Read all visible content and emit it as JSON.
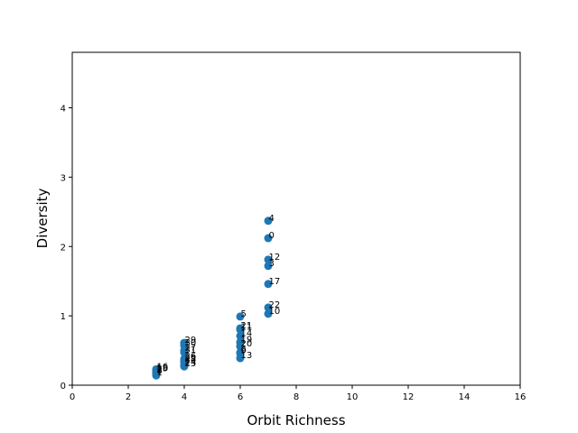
{
  "chart_data": {
    "type": "scatter",
    "title": "",
    "xlabel": "Orbit Richness",
    "ylabel": "Diversity",
    "xlim": [
      0,
      16
    ],
    "ylim": [
      0,
      4.8
    ],
    "xticks": [
      0,
      2,
      4,
      6,
      8,
      10,
      12,
      14,
      16
    ],
    "yticks": [
      0,
      1,
      2,
      3,
      4
    ],
    "grid": false,
    "legend": "none",
    "marker_color": "#1f77b4",
    "points": [
      {
        "x": 7,
        "y": 2.37,
        "label": "4"
      },
      {
        "x": 7,
        "y": 2.12,
        "label": "0"
      },
      {
        "x": 7,
        "y": 1.81,
        "label": "12"
      },
      {
        "x": 7,
        "y": 1.72,
        "label": "3"
      },
      {
        "x": 7,
        "y": 1.46,
        "label": "17"
      },
      {
        "x": 7,
        "y": 1.12,
        "label": "22"
      },
      {
        "x": 7,
        "y": 1.03,
        "label": "10"
      },
      {
        "x": 6,
        "y": 0.99,
        "label": "5"
      },
      {
        "x": 6,
        "y": 0.82,
        "label": "21"
      },
      {
        "x": 6,
        "y": 0.8,
        "label": "11"
      },
      {
        "x": 6,
        "y": 0.71,
        "label": "14"
      },
      {
        "x": 6,
        "y": 0.62,
        "label": "19"
      },
      {
        "x": 6,
        "y": 0.56,
        "label": "20"
      },
      {
        "x": 6,
        "y": 0.47,
        "label": "6"
      },
      {
        "x": 6,
        "y": 0.46,
        "label": "9"
      },
      {
        "x": 6,
        "y": 0.39,
        "label": "13"
      },
      {
        "x": 4,
        "y": 0.61,
        "label": "29"
      },
      {
        "x": 4,
        "y": 0.57,
        "label": "30"
      },
      {
        "x": 4,
        "y": 0.5,
        "label": "27"
      },
      {
        "x": 4,
        "y": 0.47,
        "label": "31"
      },
      {
        "x": 4,
        "y": 0.38,
        "label": "26"
      },
      {
        "x": 4,
        "y": 0.35,
        "label": "25"
      },
      {
        "x": 4,
        "y": 0.33,
        "label": "28"
      },
      {
        "x": 4,
        "y": 0.29,
        "label": "24"
      },
      {
        "x": 4,
        "y": 0.27,
        "label": "23"
      },
      {
        "x": 3,
        "y": 0.23,
        "label": "16"
      },
      {
        "x": 3,
        "y": 0.21,
        "label": "18"
      },
      {
        "x": 3,
        "y": 0.2,
        "label": "15"
      },
      {
        "x": 3,
        "y": 0.19,
        "label": "7"
      },
      {
        "x": 3,
        "y": 0.18,
        "label": "2"
      },
      {
        "x": 3,
        "y": 0.14,
        "label": "1"
      },
      {
        "x": 3,
        "y": 0.17,
        "label": "8"
      }
    ]
  }
}
